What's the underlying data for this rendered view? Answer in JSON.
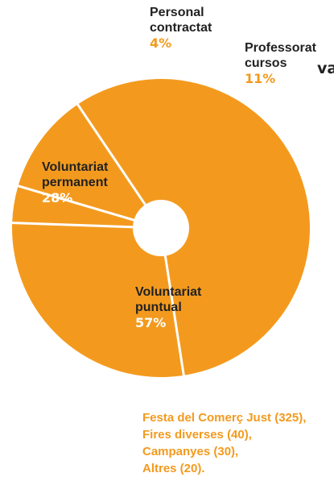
{
  "title_fragment": "va",
  "chart_data": {
    "type": "pie",
    "donut": true,
    "slices": [
      {
        "label_lines": [
          "Personal",
          "contractat"
        ],
        "value": 4,
        "percent_label": "4%"
      },
      {
        "label_lines": [
          "Professorat",
          "cursos"
        ],
        "value": 11,
        "percent_label": "11%"
      },
      {
        "label_lines": [
          "Voluntariat",
          "puntual"
        ],
        "value": 57,
        "percent_label": "57%"
      },
      {
        "label_lines": [
          "Voluntariat",
          "permanent"
        ],
        "value": 28,
        "percent_label": "28%"
      }
    ],
    "colors": {
      "slice": "#F39A1E",
      "separator": "#ffffff",
      "text": "#222222"
    }
  },
  "footnote": [
    "Festa del Comerç Just (325),",
    "Fires diverses (40),",
    "Campanyes (30),",
    "Altres (20)."
  ]
}
